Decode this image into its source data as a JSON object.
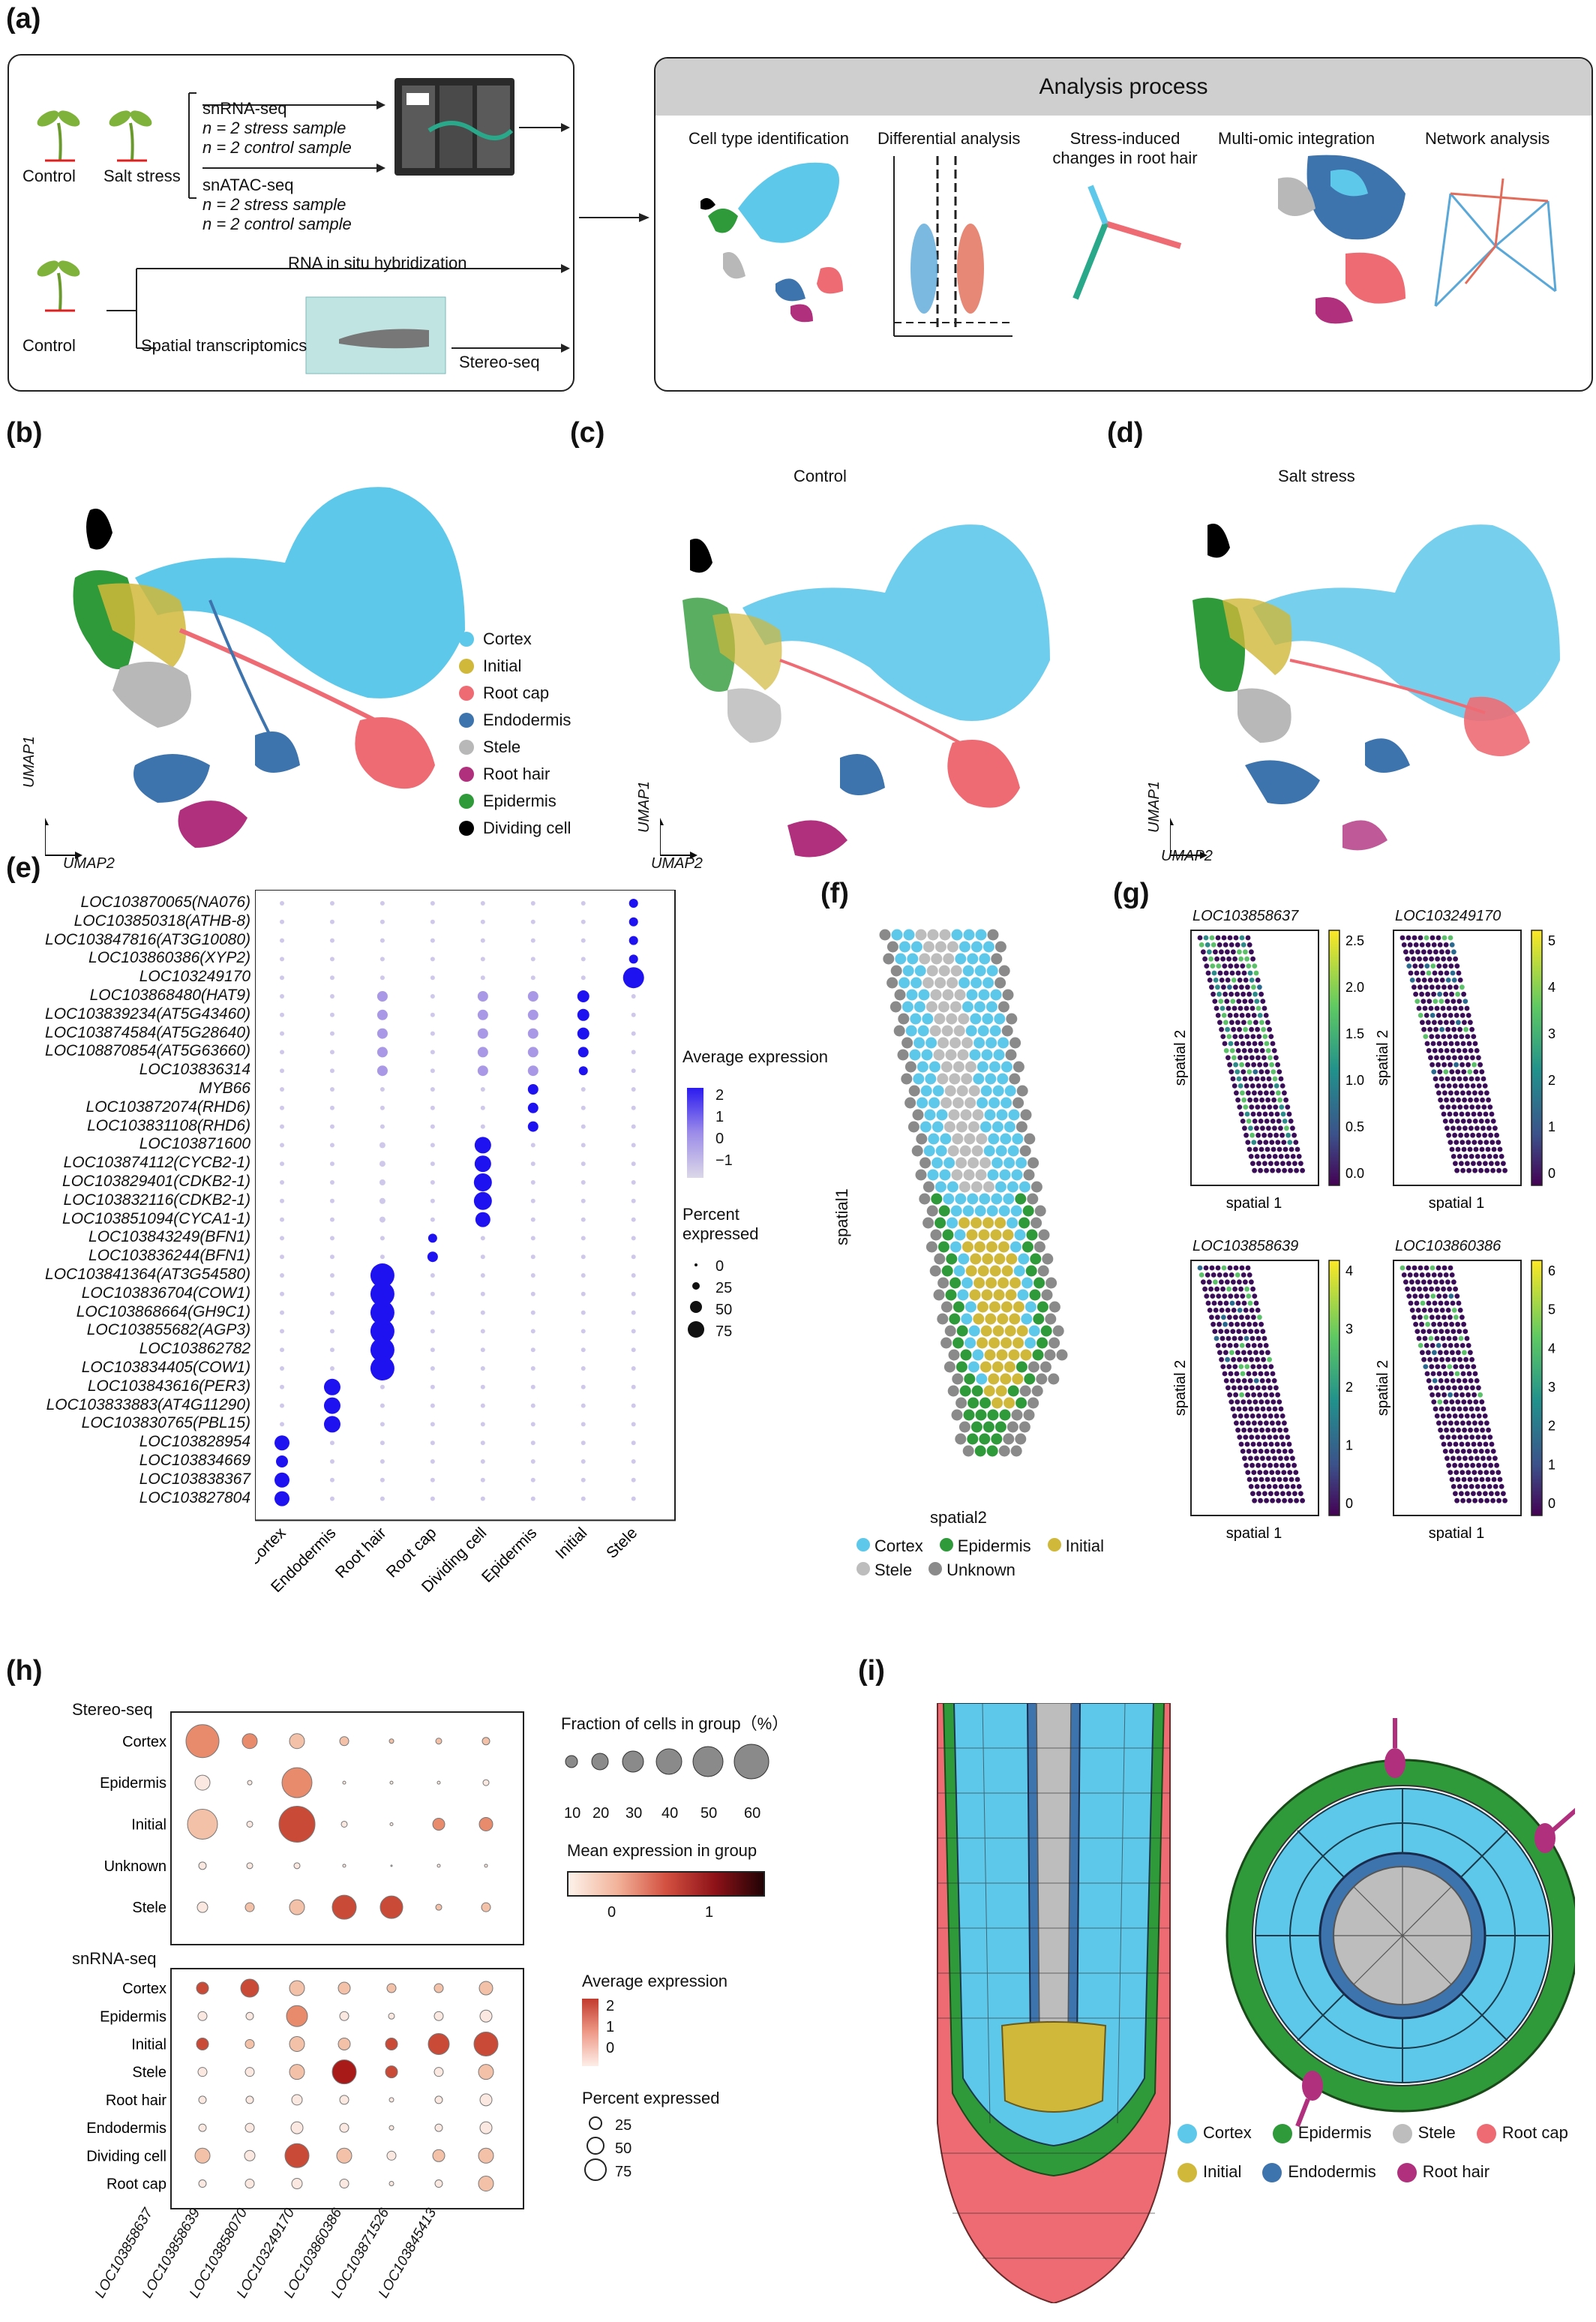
{
  "panels": {
    "a": "(a)",
    "b": "(b)",
    "c": "(c)",
    "d": "(d)",
    "e": "(e)",
    "f": "(f)",
    "g": "(g)",
    "h": "(h)",
    "i": "(i)"
  },
  "panel_a": {
    "control": "Control",
    "salt_stress": "Salt stress",
    "snrna": "snRNA-seq",
    "snrna_line1": "n = 2   stress sample",
    "snrna_line2": "n = 2   control sample",
    "snatac": "snATAC-seq",
    "snatac_line1": "n = 2   stress sample",
    "snatac_line2": "n = 2   control sample",
    "control2": "Control",
    "rna_insitu": "RNA in situ hybridization",
    "spatial_tx": "Spatial transcriptomics",
    "stereo": "Stereo-seq",
    "analysis_title": "Analysis process",
    "steps": [
      "Cell type identification",
      "Differential analysis",
      "Stress-induced changes in root hair",
      "Multi-omic integration",
      "Network analysis"
    ]
  },
  "umap": {
    "c_title": "Control",
    "d_title": "Salt stress",
    "axis1": "UMAP1",
    "axis2": "UMAP2"
  },
  "celltype_legend": [
    {
      "name": "Cortex",
      "color": "#5ec8ea"
    },
    {
      "name": "Initial",
      "color": "#d0b83a"
    },
    {
      "name": "Root cap",
      "color": "#ee6b74"
    },
    {
      "name": "Endodermis",
      "color": "#3e74ad"
    },
    {
      "name": "Stele",
      "color": "#b8b8b8"
    },
    {
      "name": "Root hair",
      "color": "#b0307e"
    },
    {
      "name": "Epidermis",
      "color": "#2f9a3a"
    },
    {
      "name": "Dividing cell",
      "color": "#000000"
    }
  ],
  "panel_e": {
    "genes": [
      "LOC103870065(NA076)",
      "LOC103850318(ATHB-8)",
      "LOC103847816(AT3G10080)",
      "LOC103860386(XYP2)",
      "LOC103249170",
      "LOC103868480(HAT9)",
      "LOC103839234(AT5G43460)",
      "LOC103874584(AT5G28640)",
      "LOC108870854(AT5G63660)",
      "LOC103836314",
      "MYB66",
      "LOC103872074(RHD6)",
      "LOC103831108(RHD6)",
      "LOC103871600",
      "LOC103874112(CYCB2-1)",
      "LOC103829401(CDKB2-1)",
      "LOC103832116(CDKB2-1)",
      "LOC103851094(CYCA1-1)",
      "LOC103843249(BFN1)",
      "LOC103836244(BFN1)",
      "LOC103841364(AT3G54580)",
      "LOC103836704(COW1)",
      "LOC103868664(GH9C1)",
      "LOC103855682(AGP3)",
      "LOC103862782",
      "LOC103834405(COW1)",
      "LOC103843616(PER3)",
      "LOC103833883(AT4G11290)",
      "LOC103830765(PBL15)",
      "LOC103828954",
      "LOC103834669",
      "LOC103838367",
      "LOC103827804"
    ],
    "celltypes": [
      "Cortex",
      "Endodermis",
      "Root hair",
      "Root cap",
      "Dividing cell",
      "Epidermis",
      "Initial",
      "Stele"
    ],
    "legend_expr_title": "Average expression",
    "legend_expr_ticks": [
      "2",
      "1",
      "0",
      "−1"
    ],
    "legend_pct_title": "Percent expressed",
    "legend_pct_values": [
      "0",
      "25",
      "50",
      "75"
    ]
  },
  "panel_f": {
    "xlabel": "spatial2",
    "ylabel": "spatial1",
    "legend": [
      {
        "name": "Cortex",
        "color": "#5ec8ea"
      },
      {
        "name": "Epidermis",
        "color": "#2f9a3a"
      },
      {
        "name": "Initial",
        "color": "#d0b83a"
      },
      {
        "name": "Stele",
        "color": "#bdbdbd"
      },
      {
        "name": "Unknown",
        "color": "#8a8a8a"
      }
    ]
  },
  "panel_g": {
    "plots": [
      {
        "gene": "LOC103858637",
        "ticks": [
          "2.5",
          "2.0",
          "1.5",
          "1.0",
          "0.5",
          "0.0"
        ]
      },
      {
        "gene": "LOC103249170",
        "ticks": [
          "5",
          "4",
          "3",
          "2",
          "1",
          "0"
        ]
      },
      {
        "gene": "LOC103858639",
        "ticks": [
          "4",
          "3",
          "2",
          "1",
          "0"
        ]
      },
      {
        "gene": "LOC103860386",
        "ticks": [
          "6",
          "5",
          "4",
          "3",
          "2",
          "1",
          "0"
        ]
      }
    ],
    "xlabel": "spatial 1",
    "ylabel": "spatial 2"
  },
  "panel_h": {
    "stereo_title": "Stereo-seq",
    "stereo_rows": [
      "Cortex",
      "Epidermis",
      "Initial",
      "Unknown",
      "Stele"
    ],
    "snrna_title": "snRNA-seq",
    "snrna_rows": [
      "Cortex",
      "Epidermis",
      "Initial",
      "Stele",
      "Root hair",
      "Endodermis",
      "Dividing cell",
      "Root cap"
    ],
    "genes": [
      "LOC103858637",
      "LOC103858639",
      "LOC103858070",
      "LOC103249170",
      "LOC103860386",
      "LOC103871526",
      "LOC103845413"
    ],
    "frac_title": "Fraction of cells in group（%）",
    "frac_ticks": [
      "10",
      "20",
      "30",
      "40",
      "50",
      "60"
    ],
    "mean_title": "Mean expression in group",
    "mean_ticks": [
      "0",
      "1"
    ],
    "avg_title": "Average expression",
    "avg_ticks": [
      "2",
      "1",
      "0"
    ],
    "pct_title": "Percent expressed",
    "pct_ticks": [
      "25",
      "50",
      "75"
    ]
  },
  "panel_i": {
    "legend": [
      {
        "name": "Cortex",
        "color": "#5ec8ea"
      },
      {
        "name": "Epidermis",
        "color": "#2f9a3a"
      },
      {
        "name": "Stele",
        "color": "#bdbdbd"
      },
      {
        "name": "Root cap",
        "color": "#ee6b74"
      },
      {
        "name": "Initial",
        "color": "#d0b83a"
      },
      {
        "name": "Endodermis",
        "color": "#3e74ad"
      },
      {
        "name": "Root hair",
        "color": "#b0307e"
      }
    ]
  }
}
